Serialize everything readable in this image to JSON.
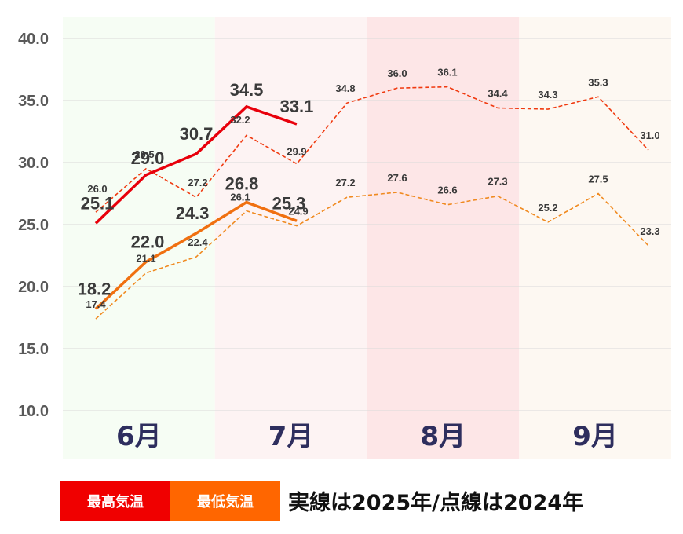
{
  "chart_data": {
    "type": "line",
    "ylim": [
      10,
      40
    ],
    "yticks": [
      "10.0",
      "15.0",
      "20.0",
      "25.0",
      "30.0",
      "35.0",
      "40.0"
    ],
    "months": [
      "6月",
      "7月",
      "8月",
      "9月"
    ],
    "month_colors": [
      "#f6fdf4",
      "#fdf3f3",
      "#fde6e7",
      "#fdf8f2"
    ],
    "grid": true,
    "series": [
      {
        "id": "max2025",
        "color": "#e8000b",
        "style": "solid",
        "x": [
          0,
          1,
          2,
          3,
          4
        ],
        "values": [
          25.1,
          29.0,
          30.7,
          34.5,
          33.1
        ],
        "labels": [
          "25.1",
          "29.0",
          "30.7",
          "34.5",
          "33.1"
        ]
      },
      {
        "id": "min2025",
        "color": "#f07010",
        "style": "solid",
        "x": [
          0,
          1,
          2,
          3,
          4
        ],
        "values": [
          18.2,
          22.0,
          24.3,
          26.8,
          25.3
        ],
        "labels": [
          "18.2",
          "22.0",
          "24.3",
          "26.8",
          "25.3"
        ]
      },
      {
        "id": "max2024",
        "color": "#f03a10",
        "style": "dashed",
        "x": [
          0,
          1,
          2,
          3,
          4,
          5,
          6,
          7,
          8,
          9,
          10,
          11
        ],
        "values": [
          26.0,
          29.5,
          27.2,
          32.2,
          29.9,
          34.8,
          36.0,
          36.1,
          34.4,
          34.3,
          35.3,
          31.0
        ],
        "labels": [
          "26.0",
          "29.5",
          "27.2",
          "32.2",
          "29.9",
          "34.8",
          "36.0",
          "36.1",
          "34.4",
          "34.3",
          "35.3",
          "31.0"
        ]
      },
      {
        "id": "min2024",
        "color": "#f08a20",
        "style": "dashed",
        "x": [
          0,
          1,
          2,
          3,
          4,
          5,
          6,
          7,
          8,
          9,
          10,
          11
        ],
        "values": [
          17.4,
          21.1,
          22.4,
          26.1,
          24.9,
          27.2,
          27.6,
          26.6,
          27.3,
          25.2,
          27.5,
          23.3
        ],
        "labels": [
          "17.4",
          "21.1",
          "22.4",
          "26.1",
          "24.9",
          "27.2",
          "27.6",
          "26.6",
          "27.3",
          "25.2",
          "27.5",
          "23.3"
        ]
      }
    ]
  },
  "legend": {
    "max_label": "最高気温",
    "min_label": "最低気温",
    "note": "実線は2025年/点線は2024年",
    "max_color": "#f00000",
    "min_color": "#ff6600"
  }
}
